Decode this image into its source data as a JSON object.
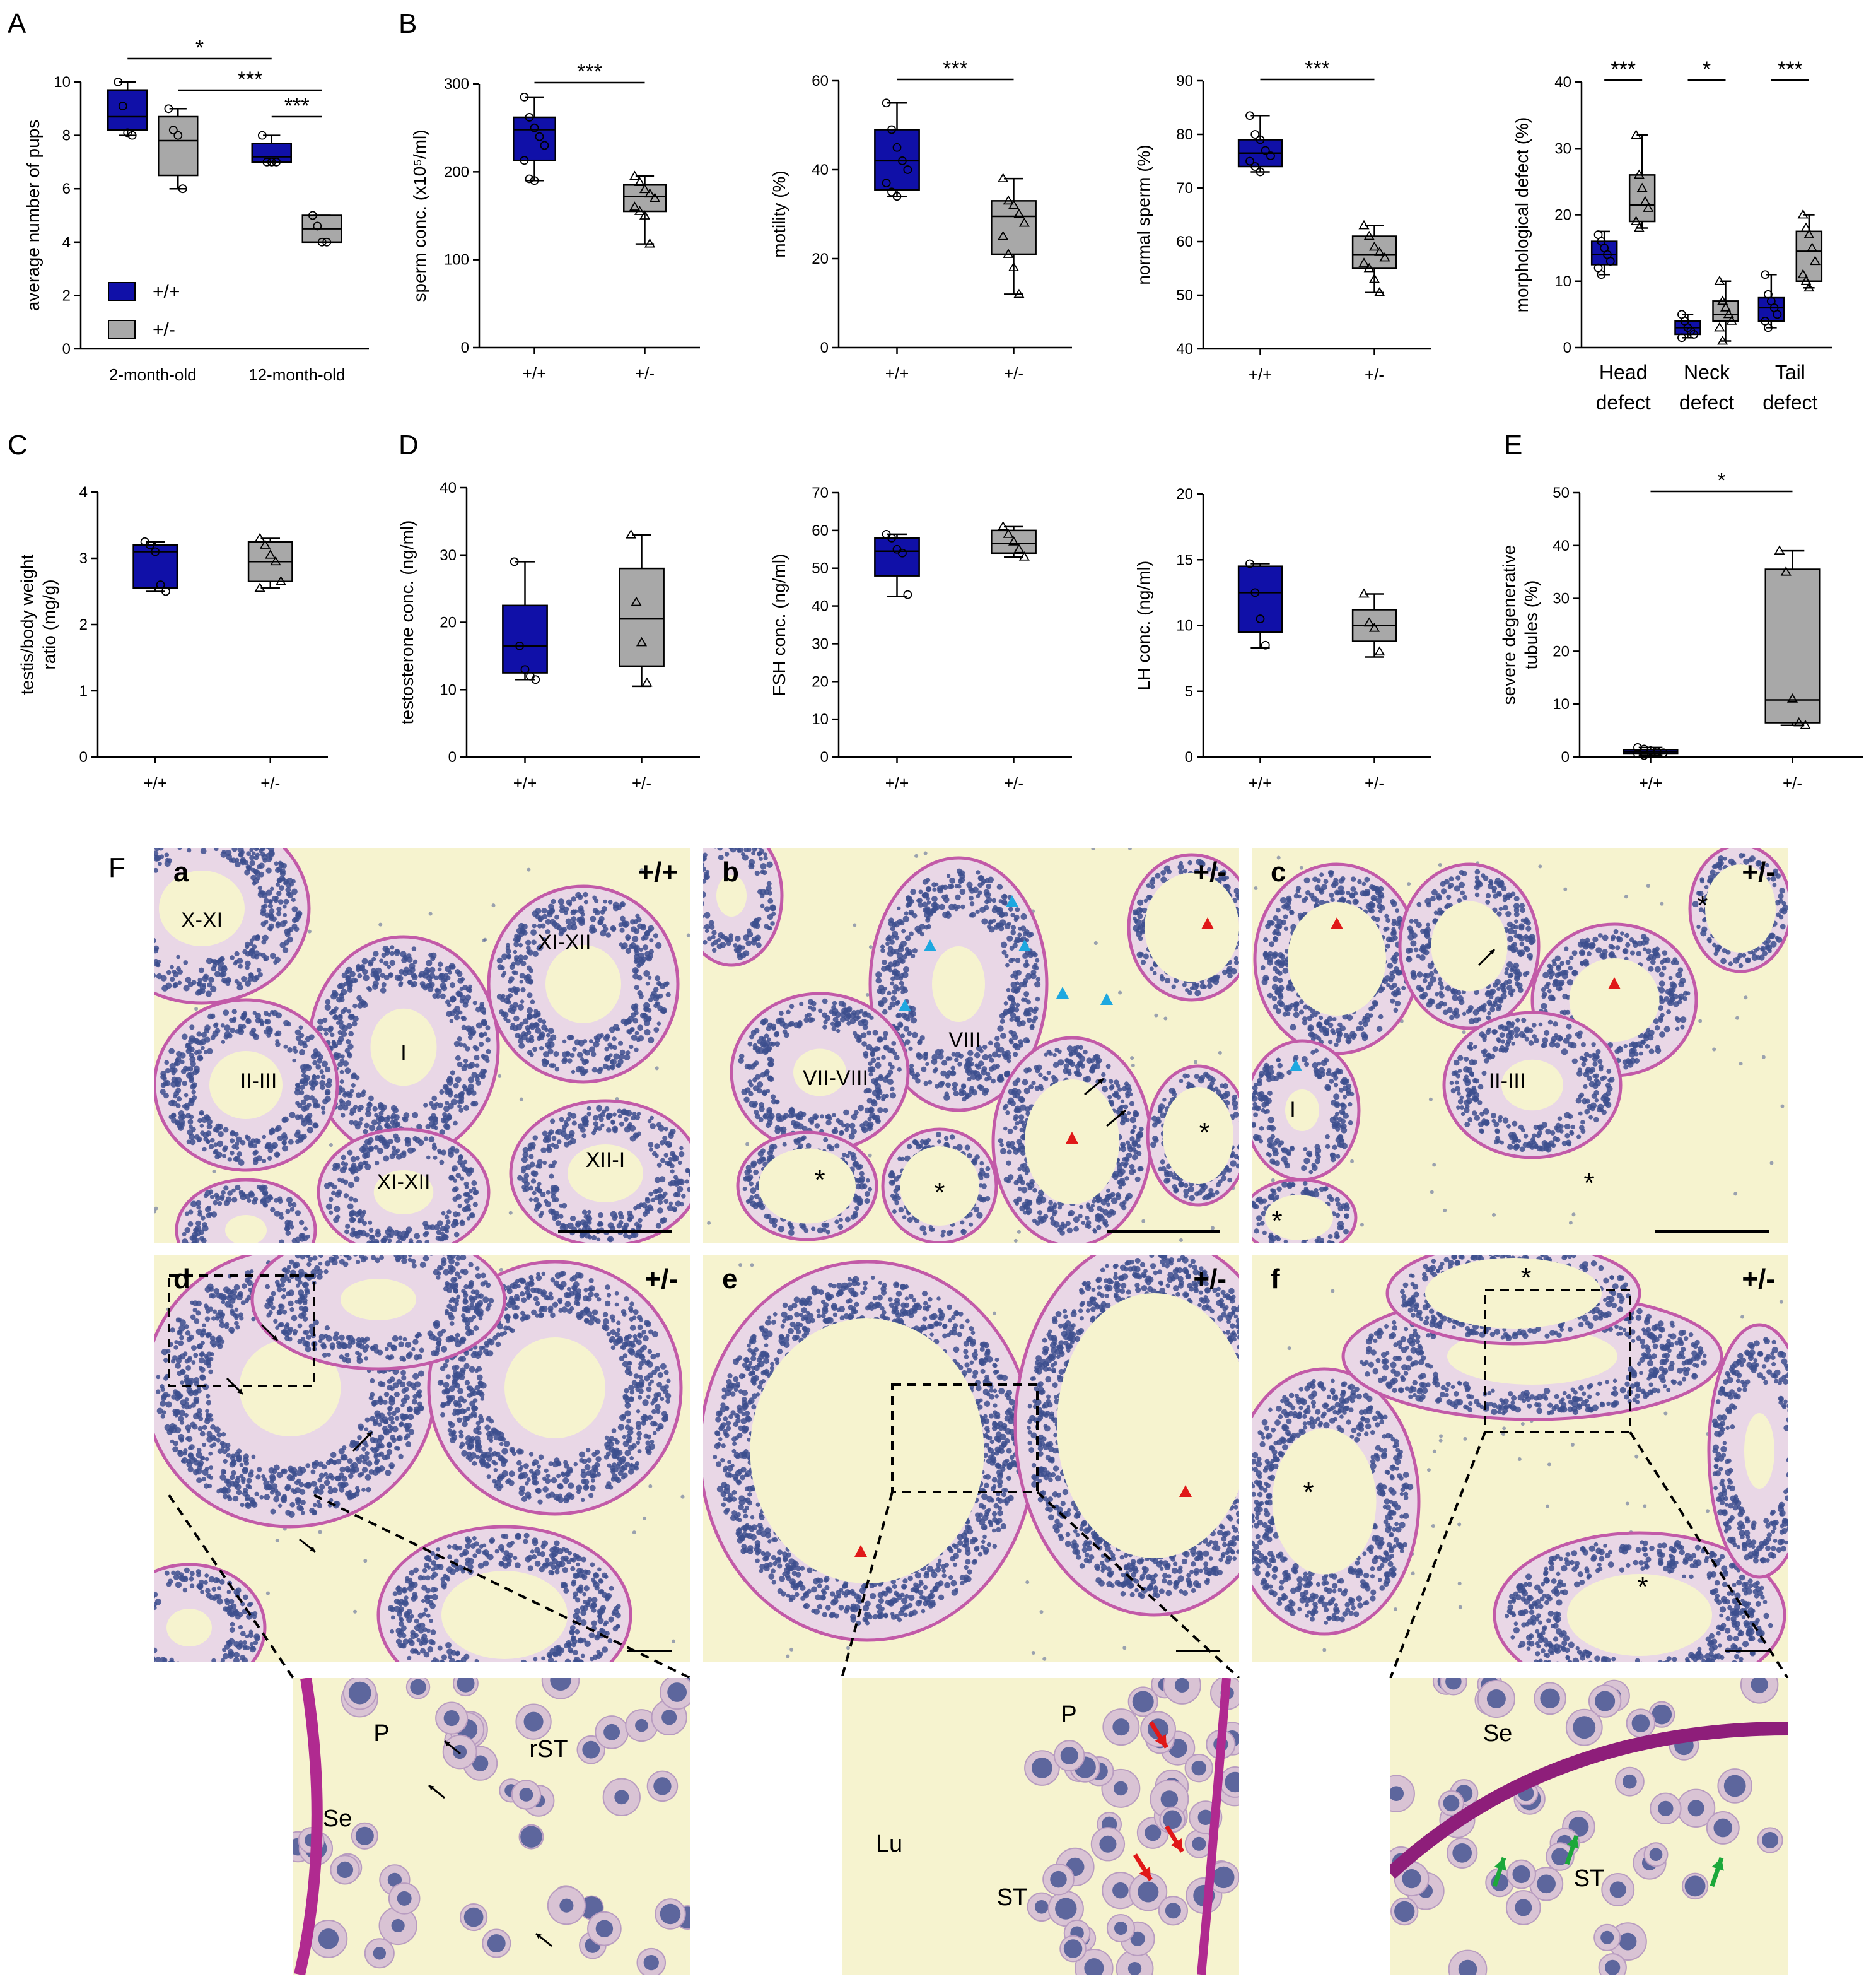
{
  "colors": {
    "wt": "#1010a8",
    "het": "#a8a8a8",
    "tissue_bg": "#f6f3cf",
    "tubule_edge": "#c25aa8",
    "nuclei": "#3d4f8e",
    "arrow_red": "#e01818",
    "arrow_blue": "#1ea8e0",
    "arrow_green": "#1ca83a"
  },
  "panel_letters": {
    "A": "A",
    "B": "B",
    "C": "C",
    "D": "D",
    "E": "E",
    "F": "F"
  },
  "legend": {
    "wt": "+/+",
    "het": "+/-"
  },
  "chart_data": [
    {
      "id": "A",
      "type": "box",
      "ylabel": "average number of pups",
      "categories": [
        "2-month-old",
        "12-month-old"
      ],
      "ylim": [
        0,
        10
      ],
      "yticks": [
        0,
        2,
        4,
        6,
        8,
        10
      ],
      "series": [
        {
          "name": "+/+",
          "boxes": [
            {
              "min": 8.0,
              "q1": 8.2,
              "median": 8.7,
              "q3": 9.7,
              "max": 10.0,
              "points": [
                10,
                9.1,
                8.1,
                8.0
              ]
            },
            {
              "min": 7.0,
              "q1": 7.0,
              "median": 7.2,
              "q3": 7.7,
              "max": 8.0,
              "points": [
                8,
                7,
                7,
                7
              ]
            }
          ]
        },
        {
          "name": "+/-",
          "boxes": [
            {
              "min": 6.0,
              "q1": 6.5,
              "median": 7.8,
              "q3": 8.7,
              "max": 9.0,
              "points": [
                9,
                8.2,
                8,
                6
              ]
            },
            {
              "min": 4.0,
              "q1": 4.0,
              "median": 4.5,
              "q3": 5.0,
              "max": 5.0,
              "points": [
                5,
                4.6,
                4,
                4
              ]
            }
          ]
        }
      ],
      "significance": [
        "*",
        "***",
        "***"
      ]
    },
    {
      "id": "B1",
      "type": "box",
      "ylabel": "sperm conc. (x10⁵/ml)",
      "categories": [
        "+/+",
        "+/-"
      ],
      "ylim": [
        0,
        300
      ],
      "yticks": [
        0,
        100,
        200,
        300
      ],
      "boxes": [
        {
          "min": 190,
          "q1": 213,
          "median": 248,
          "q3": 262,
          "max": 285,
          "points": [
            285,
            262,
            250,
            240,
            230,
            213,
            192,
            190
          ]
        },
        {
          "min": 118,
          "q1": 155,
          "median": 172,
          "q3": 185,
          "max": 195,
          "points": [
            195,
            188,
            180,
            175,
            170,
            160,
            155,
            150,
            118
          ]
        }
      ],
      "significance": [
        "***"
      ]
    },
    {
      "id": "B2",
      "type": "box",
      "ylabel": "motility (%)",
      "categories": [
        "+/+",
        "+/-"
      ],
      "ylim": [
        0,
        60
      ],
      "yticks": [
        0,
        20,
        40,
        60
      ],
      "boxes": [
        {
          "min": 34,
          "q1": 35.5,
          "median": 42,
          "q3": 49,
          "max": 55,
          "points": [
            55,
            49,
            45,
            42,
            40,
            37,
            35,
            34
          ]
        },
        {
          "min": 12,
          "q1": 21,
          "median": 29.5,
          "q3": 33,
          "max": 38,
          "points": [
            38,
            33,
            32,
            30,
            28,
            25,
            21,
            18,
            12
          ]
        }
      ],
      "significance": [
        "***"
      ]
    },
    {
      "id": "B3",
      "type": "box",
      "ylabel": "normal sperm (%)",
      "categories": [
        "+/+",
        "+/-"
      ],
      "ylim": [
        40,
        90
      ],
      "yticks": [
        40,
        50,
        60,
        70,
        80,
        90
      ],
      "boxes": [
        {
          "min": 73,
          "q1": 74,
          "median": 76.5,
          "q3": 79,
          "max": 83.5,
          "points": [
            83.5,
            80,
            79,
            77,
            76,
            75,
            74,
            73
          ]
        },
        {
          "min": 50.5,
          "q1": 55,
          "median": 57.5,
          "q3": 61,
          "max": 63,
          "points": [
            63,
            61,
            59,
            58,
            57,
            56,
            55,
            53,
            50.5
          ]
        }
      ],
      "significance": [
        "***"
      ]
    },
    {
      "id": "B4",
      "type": "box",
      "ylabel": "morphological defect (%)",
      "categories": [
        "Head\ndefect",
        "Neck\ndefect",
        "Tail\ndefect"
      ],
      "ylim": [
        0,
        40
      ],
      "yticks": [
        0,
        10,
        20,
        30,
        40
      ],
      "series": [
        {
          "name": "+/+",
          "boxes": [
            {
              "min": 11,
              "q1": 12.5,
              "median": 14,
              "q3": 16,
              "max": 17.5,
              "points": [
                17,
                16,
                15,
                14,
                13,
                12,
                11
              ]
            },
            {
              "min": 1.5,
              "q1": 2,
              "median": 3,
              "q3": 4,
              "max": 5,
              "points": [
                5,
                4,
                3,
                2.5,
                2,
                1.5
              ]
            },
            {
              "min": 3,
              "q1": 4,
              "median": 6,
              "q3": 7.5,
              "max": 11,
              "points": [
                11,
                8,
                7,
                6,
                5,
                4,
                3
              ]
            }
          ]
        },
        {
          "name": "+/-",
          "boxes": [
            {
              "min": 18,
              "q1": 19,
              "median": 21.5,
              "q3": 26,
              "max": 32,
              "points": [
                32,
                26,
                24,
                22,
                21,
                19,
                18
              ]
            },
            {
              "min": 1,
              "q1": 4,
              "median": 5,
              "q3": 7,
              "max": 10,
              "points": [
                10,
                7,
                6,
                5,
                4,
                3,
                1
              ]
            },
            {
              "min": 9,
              "q1": 10,
              "median": 14.5,
              "q3": 17.5,
              "max": 20,
              "points": [
                20,
                18,
                17,
                15,
                13,
                11,
                10,
                9
              ]
            }
          ]
        }
      ],
      "significance": [
        "***",
        "*",
        "***"
      ]
    },
    {
      "id": "C",
      "type": "box",
      "ylabel": "testis/body weight\nratio (mg/g)",
      "categories": [
        "+/+",
        "+/-"
      ],
      "ylim": [
        0,
        4
      ],
      "yticks": [
        0,
        1,
        2,
        3,
        4
      ],
      "boxes": [
        {
          "min": 2.5,
          "q1": 2.55,
          "median": 3.1,
          "q3": 3.2,
          "max": 3.25,
          "points": [
            3.25,
            3.2,
            3.1,
            2.6,
            2.5
          ]
        },
        {
          "min": 2.55,
          "q1": 2.65,
          "median": 2.95,
          "q3": 3.25,
          "max": 3.3,
          "points": [
            3.3,
            3.2,
            3.05,
            2.95,
            2.65,
            2.55
          ]
        }
      ]
    },
    {
      "id": "D1",
      "type": "box",
      "ylabel": "testosterone conc. (ng/ml)",
      "categories": [
        "+/+",
        "+/-"
      ],
      "ylim": [
        0,
        40
      ],
      "yticks": [
        0,
        10,
        20,
        30,
        40
      ],
      "boxes": [
        {
          "min": 11.5,
          "q1": 12.5,
          "median": 16.5,
          "q3": 22.5,
          "max": 29,
          "points": [
            29,
            16.5,
            13,
            12,
            11.5
          ]
        },
        {
          "min": 10.5,
          "q1": 13.5,
          "median": 20.5,
          "q3": 28,
          "max": 33,
          "points": [
            33,
            23,
            17,
            11
          ]
        }
      ]
    },
    {
      "id": "D2",
      "type": "box",
      "ylabel": "FSH conc. (ng/ml)",
      "categories": [
        "+/+",
        "+/-"
      ],
      "ylim": [
        0,
        70
      ],
      "yticks": [
        0,
        10,
        20,
        30,
        40,
        50,
        60,
        70
      ],
      "boxes": [
        {
          "min": 42.5,
          "q1": 48,
          "median": 54.5,
          "q3": 58,
          "max": 59,
          "points": [
            59,
            58,
            55,
            54,
            43
          ]
        },
        {
          "min": 53,
          "q1": 54,
          "median": 56.5,
          "q3": 60,
          "max": 61,
          "points": [
            61,
            59,
            57,
            55,
            53
          ]
        }
      ]
    },
    {
      "id": "D3",
      "type": "box",
      "ylabel": "LH conc. (ng/ml)",
      "categories": [
        "+/+",
        "+/-"
      ],
      "ylim": [
        0,
        20
      ],
      "yticks": [
        0,
        5,
        10,
        15,
        20
      ],
      "boxes": [
        {
          "min": 8.3,
          "q1": 9.5,
          "median": 12.5,
          "q3": 14.5,
          "max": 14.7,
          "points": [
            14.7,
            12.5,
            10.5,
            8.5
          ]
        },
        {
          "min": 7.6,
          "q1": 8.8,
          "median": 10,
          "q3": 11.2,
          "max": 12.4,
          "points": [
            12.4,
            10.2,
            9.8,
            8
          ]
        }
      ]
    },
    {
      "id": "E",
      "type": "box",
      "ylabel": "severe degenerative\ntubules (%)",
      "categories": [
        "+/+",
        "+/-"
      ],
      "ylim": [
        0,
        50
      ],
      "yticks": [
        0,
        10,
        20,
        30,
        40,
        50
      ],
      "boxes": [
        {
          "min": 0.3,
          "q1": 0.6,
          "median": 1.0,
          "q3": 1.4,
          "max": 1.8,
          "points": [
            1.8,
            1.5,
            1.2,
            1.0,
            0.8,
            0.6,
            0.3
          ]
        },
        {
          "min": 6,
          "q1": 6.5,
          "median": 10.8,
          "q3": 35.5,
          "max": 39,
          "points": [
            39,
            35,
            11,
            6.5,
            6
          ]
        }
      ],
      "significance": [
        "*"
      ]
    }
  ],
  "histology": {
    "panels": [
      {
        "id": "a",
        "genotype": "+/+",
        "labels": [
          "X-XI",
          "XI-XII",
          "I",
          "II-III",
          "XI-XII",
          "XII-I"
        ]
      },
      {
        "id": "b",
        "genotype": "+/-",
        "labels": [
          "VIII",
          "VII-VIII",
          "*",
          "*",
          "*"
        ]
      },
      {
        "id": "c",
        "genotype": "+/-",
        "labels": [
          "II-III",
          "I",
          "*",
          "*",
          "*"
        ]
      },
      {
        "id": "d",
        "genotype": "+/-",
        "labels": []
      },
      {
        "id": "e",
        "genotype": "+/-",
        "labels": []
      },
      {
        "id": "f",
        "genotype": "+/-",
        "labels": [
          "*",
          "*",
          "*"
        ]
      }
    ],
    "insets": [
      {
        "labels": [
          "P",
          "rST",
          "Se"
        ]
      },
      {
        "labels": [
          "P",
          "Lu",
          "ST"
        ]
      },
      {
        "labels": [
          "Se",
          "ST"
        ]
      }
    ]
  }
}
